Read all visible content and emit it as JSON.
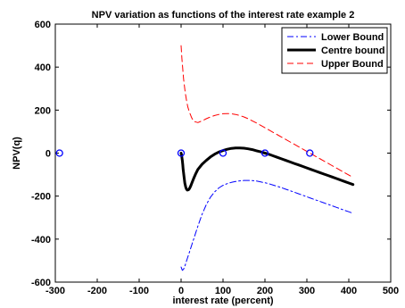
{
  "chart_data": {
    "type": "line",
    "title": "NPV variation as functions of the interest rate example 2",
    "xlabel": "interest rate (percent)",
    "ylabel": "NPV(q)",
    "xlim": [
      -300,
      500
    ],
    "ylim": [
      -600,
      600
    ],
    "xticks": [
      -300,
      -200,
      -100,
      0,
      100,
      200,
      300,
      400,
      500
    ],
    "yticks": [
      -600,
      -400,
      -200,
      0,
      200,
      400,
      600
    ],
    "grid": false,
    "legend_position": "top-right",
    "series": [
      {
        "name": "Lower Bound",
        "color": "#0000ff",
        "line_style": "dash-dot",
        "x": [
          0,
          3,
          6,
          10,
          15,
          20,
          30,
          40,
          50,
          60,
          70,
          80,
          90,
          100,
          110,
          120,
          130,
          140,
          150,
          160,
          170,
          180,
          190,
          200,
          210,
          220,
          230,
          240,
          250,
          260,
          270,
          280,
          290,
          300,
          310,
          320,
          330,
          340,
          350,
          360,
          370,
          380,
          390,
          400,
          410
        ],
        "y": [
          -530,
          -545,
          -540,
          -520,
          -490,
          -460,
          -400,
          -340,
          -285,
          -240,
          -205,
          -180,
          -162,
          -150,
          -142,
          -136,
          -132,
          -129,
          -127,
          -127,
          -128,
          -130,
          -134,
          -138,
          -143,
          -149,
          -155,
          -161,
          -168,
          -175,
          -182,
          -189,
          -196,
          -203,
          -210,
          -217,
          -224,
          -231,
          -238,
          -245,
          -252,
          -259,
          -266,
          -273,
          -280
        ]
      },
      {
        "name": "Centre bound",
        "color": "#000000",
        "line_style": "solid",
        "x": [
          0,
          1,
          2,
          3,
          4,
          5,
          7,
          9,
          11,
          13,
          15,
          18,
          20,
          23,
          26,
          30,
          35,
          40,
          50,
          60,
          70,
          80,
          90,
          100,
          110,
          120,
          130,
          140,
          150,
          160,
          170,
          180,
          190,
          200,
          210,
          220,
          230,
          240,
          250,
          260,
          270,
          280,
          290,
          300,
          310,
          320,
          330,
          340,
          350,
          360,
          370,
          380,
          390,
          400,
          410
        ],
        "y": [
          0,
          -8,
          -20,
          -35,
          -55,
          -75,
          -110,
          -140,
          -158,
          -168,
          -172,
          -170,
          -165,
          -153,
          -138,
          -118,
          -95,
          -76,
          -52,
          -34,
          -18,
          -5,
          5,
          12,
          18,
          22,
          24,
          24,
          23,
          20,
          16,
          11,
          6,
          0,
          -6,
          -13,
          -20,
          -27,
          -34,
          -41,
          -48,
          -55,
          -62,
          -69,
          -76,
          -83,
          -90,
          -97,
          -104,
          -111,
          -118,
          -125,
          -132,
          -139,
          -146
        ]
      },
      {
        "name": "Upper Bound",
        "color": "#ff0000",
        "line_style": "dashed",
        "x": [
          0,
          2,
          4,
          6,
          8,
          10,
          13,
          16,
          20,
          25,
          30,
          40,
          50,
          60,
          70,
          80,
          90,
          100,
          110,
          120,
          130,
          140,
          150,
          160,
          170,
          180,
          190,
          200,
          210,
          220,
          230,
          240,
          250,
          260,
          270,
          280,
          290,
          300,
          310,
          320,
          330,
          340,
          350,
          360,
          370,
          380,
          390,
          400,
          410
        ],
        "y": [
          500,
          440,
          390,
          345,
          310,
          280,
          245,
          215,
          190,
          165,
          148,
          142,
          150,
          160,
          168,
          175,
          180,
          183,
          184,
          183,
          180,
          175,
          168,
          160,
          150,
          140,
          129,
          118,
          107,
          96,
          85,
          74,
          63,
          52,
          41,
          30,
          19,
          8,
          -3,
          -14,
          -25,
          -36,
          -47,
          -58,
          -69,
          -80,
          -91,
          -102,
          -113
        ]
      },
      {
        "name": "",
        "color": "#0000ff",
        "line_style": "none",
        "marker": "circle",
        "x": [
          -290,
          0,
          100,
          200,
          307
        ],
        "y": [
          0,
          0,
          0,
          0,
          0
        ]
      }
    ]
  }
}
